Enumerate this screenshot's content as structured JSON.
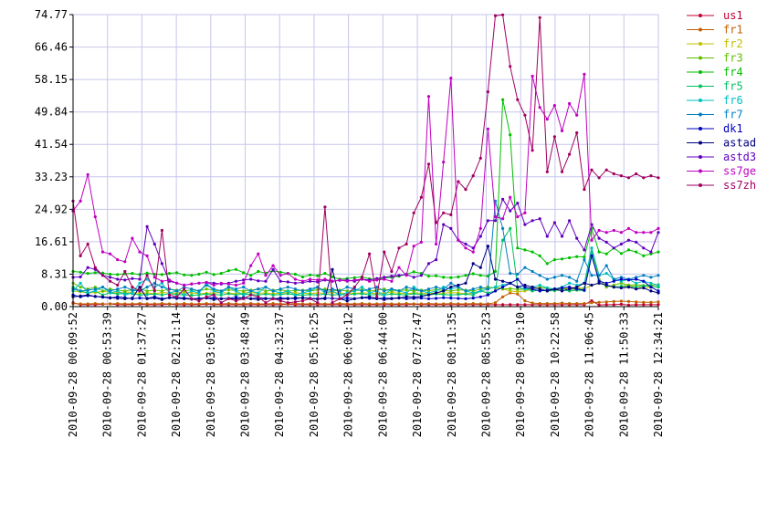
{
  "chart_data": {
    "type": "line",
    "title": "",
    "xlabel": "",
    "ylabel": "",
    "ylim": [
      0,
      74.77
    ],
    "grid": true,
    "legend_position": "right",
    "y_ticks": [
      "0.00",
      "8.31",
      "16.61",
      "24.92",
      "33.23",
      "41.54",
      "49.84",
      "58.15",
      "66.46",
      "74.77"
    ],
    "x_ticks": [
      "2010-09-28 00:09:52",
      "2010-09-28 00:53:39",
      "2010-09-28 01:37:27",
      "2010-09-28 02:21:14",
      "2010-09-28 03:05:02",
      "2010-09-28 03:48:49",
      "2010-09-28 04:32:37",
      "2010-09-28 05:16:25",
      "2010-09-28 06:00:12",
      "2010-09-28 06:44:00",
      "2010-09-28 07:27:47",
      "2010-09-28 08:11:35",
      "2010-09-28 08:55:23",
      "2010-09-28 09:39:10",
      "2010-09-28 10:22:58",
      "2010-09-28 11:06:45",
      "2010-09-28 11:50:33",
      "2010-09-28 12:34:21"
    ],
    "series": [
      {
        "name": "us1",
        "color": "#c00030",
        "values": [
          1.0,
          0.5,
          0.5,
          0.5,
          0.6,
          0.7,
          0.5,
          0.5,
          0.5,
          0.6,
          0.5,
          0.5,
          0.5,
          0.6,
          0.5,
          0.5,
          0.5,
          0.5,
          0.6,
          0.5,
          0.5,
          0.5,
          0.5,
          0.5,
          0.5,
          0.5,
          0.5,
          0.5,
          0.5,
          0.6,
          0.5,
          0.5,
          0.5,
          0.5,
          0.5,
          0.5,
          0.5,
          0.5,
          0.5,
          0.5,
          0.5,
          0.5,
          0.5,
          0.5,
          0.5,
          0.5,
          0.6,
          0.5,
          0.5,
          0.5,
          0.5,
          0.5,
          0.5,
          0.5,
          0.5,
          0.5,
          0.5,
          0.5,
          0.5,
          0.5,
          0.5,
          0.5,
          0.5,
          0.5,
          0.5,
          0.5,
          0.5,
          0.5,
          0.5,
          0.5,
          1.5,
          0.4,
          0.5,
          0.5,
          0.6,
          0.4,
          0.5,
          0.5,
          0.5,
          0.5
        ]
      },
      {
        "name": "fr1",
        "color": "#c06000",
        "values": [
          0.8,
          0.7,
          0.7,
          0.8,
          0.7,
          0.7,
          0.8,
          0.7,
          0.7,
          0.8,
          0.7,
          0.7,
          0.8,
          0.7,
          0.7,
          0.8,
          0.7,
          0.7,
          0.8,
          0.7,
          0.7,
          0.8,
          0.7,
          0.7,
          0.8,
          0.7,
          0.7,
          0.8,
          0.7,
          0.7,
          0.8,
          0.7,
          0.7,
          0.8,
          0.7,
          0.7,
          0.8,
          0.7,
          0.7,
          0.8,
          0.7,
          0.7,
          0.8,
          0.7,
          0.7,
          0.8,
          0.7,
          0.7,
          0.8,
          0.7,
          0.7,
          0.8,
          0.7,
          0.7,
          0.8,
          0.7,
          0.7,
          1.0,
          2.5,
          3.5,
          3.2,
          1.5,
          0.9,
          0.8,
          0.8,
          0.8,
          0.9,
          0.8,
          0.8,
          0.8,
          1.0,
          1.1,
          1.2,
          1.3,
          1.4,
          1.3,
          1.2,
          1.1,
          1.1,
          1.2
        ]
      },
      {
        "name": "fr2",
        "color": "#c0c000",
        "values": [
          4.0,
          3.8,
          3.5,
          3.6,
          3.9,
          3.7,
          3.5,
          3.8,
          3.6,
          3.4,
          3.5,
          3.3,
          3.6,
          3.5,
          3.4,
          3.6,
          3.5,
          3.3,
          3.4,
          3.5,
          3.6,
          3.4,
          3.3,
          3.5,
          3.6,
          3.4,
          3.5,
          3.3,
          3.4,
          3.6,
          3.5,
          3.4,
          3.3,
          3.5,
          3.4,
          3.6,
          3.5,
          3.3,
          3.4,
          3.5,
          3.4,
          3.3,
          3.5,
          3.6,
          3.4,
          3.3,
          3.5,
          3.4,
          3.3,
          3.5,
          3.4,
          3.6,
          3.5,
          3.3,
          3.4,
          4.0,
          4.5,
          5.0,
          4.5,
          4.0,
          3.8,
          4.0,
          4.5,
          5.0,
          4.6,
          4.2,
          4.5,
          4.8,
          5.0,
          4.5,
          5.5,
          6.0,
          5.5,
          5.0,
          5.2,
          5.5,
          5.0,
          4.8,
          5.0,
          5.2
        ]
      },
      {
        "name": "fr3",
        "color": "#60c000",
        "values": [
          6.0,
          5.0,
          4.5,
          5.0,
          4.0,
          4.5,
          4.2,
          4.0,
          4.3,
          4.5,
          4.0,
          4.2,
          4.0,
          4.5,
          4.2,
          4.0,
          4.3,
          4.0,
          4.5,
          4.2,
          4.0,
          4.3,
          4.1,
          4.0,
          4.2,
          4.5,
          4.0,
          4.2,
          4.3,
          4.0,
          4.1,
          4.2,
          4.0,
          4.3,
          4.5,
          4.0,
          4.2,
          4.0,
          4.1,
          4.3,
          4.0,
          4.2,
          4.5,
          4.0,
          4.1,
          4.3,
          4.0,
          4.2,
          4.0,
          4.4,
          4.1,
          4.0,
          4.3,
          4.2,
          4.0,
          4.5,
          5.0,
          4.8,
          4.5,
          4.6,
          4.4,
          4.5,
          4.6,
          4.8,
          4.7,
          4.5,
          4.6,
          4.4,
          4.5,
          4.7,
          15.0,
          7.0,
          5.0,
          5.5,
          6.0,
          5.5,
          5.6,
          5.4,
          5.5,
          5.6
        ]
      },
      {
        "name": "fr4",
        "color": "#00c000",
        "values": [
          9.0,
          8.8,
          8.5,
          8.7,
          8.6,
          8.3,
          8.2,
          8.4,
          8.5,
          8.2,
          8.6,
          8.3,
          8.2,
          8.5,
          8.7,
          8.1,
          8.0,
          8.3,
          8.8,
          8.2,
          8.5,
          9.2,
          9.5,
          8.7,
          8.0,
          9.0,
          8.6,
          9.2,
          8.8,
          8.5,
          8.3,
          7.6,
          8.1,
          7.9,
          8.5,
          7.6,
          7.0,
          7.2,
          7.4,
          7.6,
          7.1,
          7.0,
          7.3,
          7.5,
          7.8,
          8.3,
          8.9,
          8.5,
          7.8,
          7.9,
          7.5,
          7.4,
          7.6,
          8.0,
          8.4,
          8.0,
          7.8,
          9.0,
          53.0,
          44.0,
          15.0,
          14.5,
          14.0,
          13.0,
          11.0,
          12.0,
          12.2,
          12.5,
          12.8,
          12.7,
          20.0,
          14.0,
          13.5,
          15.0,
          13.6,
          14.5,
          14.0,
          13.0,
          13.5,
          14.0
        ]
      },
      {
        "name": "fr5",
        "color": "#00c060",
        "values": [
          5.0,
          4.0,
          3.5,
          4.0,
          3.0,
          3.5,
          3.2,
          3.4,
          3.3,
          3.0,
          3.1,
          3.2,
          3.0,
          3.3,
          3.1,
          3.0,
          2.9,
          3.0,
          3.2,
          3.1,
          3.0,
          3.3,
          3.0,
          3.2,
          3.1,
          3.0,
          3.2,
          3.0,
          3.1,
          3.3,
          3.0,
          2.9,
          3.1,
          3.0,
          3.2,
          3.0,
          3.1,
          3.0,
          3.2,
          3.3,
          3.0,
          3.1,
          3.0,
          3.2,
          3.1,
          3.0,
          3.3,
          3.1,
          3.0,
          3.2,
          3.1,
          3.0,
          3.1,
          3.2,
          3.0,
          4.0,
          3.5,
          4.0,
          17.0,
          20.0,
          5.0,
          4.5,
          4.0,
          4.2,
          4.0,
          4.1,
          4.3,
          4.0,
          4.2,
          4.1,
          14.0,
          6.0,
          5.5,
          5.0,
          5.2,
          5.1,
          5.0,
          5.3,
          5.2,
          5.0
        ]
      },
      {
        "name": "fr6",
        "color": "#00c0c0",
        "values": [
          4.0,
          6.0,
          3.5,
          4.0,
          5.0,
          3.5,
          4.0,
          3.0,
          3.5,
          6.0,
          7.0,
          5.0,
          6.0,
          3.5,
          4.0,
          3.0,
          4.0,
          3.5,
          6.0,
          4.0,
          3.5,
          5.0,
          4.0,
          3.0,
          4.0,
          3.5,
          5.0,
          4.0,
          3.5,
          4.0,
          3.0,
          3.5,
          4.0,
          5.0,
          3.5,
          4.0,
          3.0,
          3.5,
          4.0,
          5.0,
          3.5,
          4.0,
          3.0,
          4.5,
          4.0,
          3.5,
          5.0,
          4.0,
          3.5,
          4.0,
          5.0,
          4.5,
          5.0,
          4.0,
          3.5,
          4.0,
          4.5,
          5.0,
          5.5,
          6.0,
          5.0,
          4.5,
          5.0,
          5.5,
          4.8,
          4.5,
          5.0,
          6.0,
          5.5,
          6.0,
          15.0,
          8.0,
          8.5,
          7.0,
          6.5,
          7.0,
          6.0,
          6.5,
          6.0,
          5.5
        ]
      },
      {
        "name": "fr7",
        "color": "#0080c0",
        "values": [
          4.5,
          4.0,
          4.2,
          4.5,
          5.0,
          4.0,
          4.5,
          5.0,
          4.2,
          4.0,
          5.0,
          6.0,
          5.0,
          4.5,
          4.0,
          5.0,
          4.5,
          4.0,
          5.5,
          4.5,
          4.0,
          5.0,
          4.5,
          5.0,
          4.0,
          4.5,
          5.0,
          4.0,
          4.5,
          5.0,
          4.5,
          4.0,
          4.5,
          5.0,
          4.0,
          4.5,
          4.0,
          5.0,
          4.5,
          4.0,
          4.5,
          5.0,
          4.0,
          4.5,
          4.0,
          5.0,
          4.5,
          4.0,
          4.5,
          5.0,
          4.5,
          6.0,
          5.0,
          4.0,
          4.5,
          5.0,
          4.5,
          27.0,
          20.0,
          8.5,
          8.3,
          10.0,
          9.0,
          8.0,
          7.0,
          7.5,
          8.0,
          7.5,
          6.5,
          12.0,
          8.0,
          8.0,
          10.5,
          7.0,
          7.5,
          7.0,
          7.5,
          8.0,
          7.5,
          8.0
        ]
      },
      {
        "name": "dk1",
        "color": "#0000c0",
        "values": [
          3.0,
          2.5,
          2.8,
          2.6,
          2.4,
          2.2,
          2.5,
          2.3,
          2.0,
          2.2,
          2.1,
          2.5,
          2.0,
          2.3,
          2.4,
          2.2,
          2.0,
          2.1,
          2.3,
          2.2,
          2.0,
          2.1,
          2.4,
          2.2,
          2.0,
          2.3,
          2.1,
          2.0,
          2.2,
          2.1,
          2.0,
          2.3,
          2.1,
          2.0,
          2.2,
          2.1,
          2.0,
          2.2,
          2.0,
          2.3,
          2.1,
          2.0,
          2.2,
          2.1,
          2.3,
          2.0,
          2.1,
          2.2,
          2.0,
          2.1,
          2.3,
          2.2,
          2.1,
          2.0,
          2.2,
          2.5,
          3.0,
          4.0,
          5.0,
          6.0,
          7.0,
          5.0,
          4.5,
          4.0,
          4.2,
          4.5,
          4.8,
          5.0,
          4.5,
          4.2,
          13.0,
          6.5,
          6.0,
          6.5,
          7.0,
          6.8,
          7.0,
          6.5,
          5.0,
          4.0
        ]
      },
      {
        "name": "astad",
        "color": "#000080",
        "values": [
          2.5,
          2.7,
          3.0,
          2.6,
          2.5,
          2.3,
          2.1,
          2.0,
          2.2,
          5.0,
          2.0,
          2.2,
          1.8,
          2.3,
          2.1,
          2.0,
          1.9,
          2.0,
          2.2,
          1.8,
          2.0,
          2.1,
          1.9,
          2.3,
          2.0,
          1.8,
          2.0,
          2.1,
          1.9,
          2.0,
          2.3,
          2.2,
          2.1,
          1.9,
          2.0,
          9.5,
          2.0,
          1.5,
          2.0,
          2.3,
          2.5,
          2.1,
          1.8,
          2.0,
          2.2,
          2.5,
          2.4,
          2.6,
          3.0,
          3.5,
          4.0,
          5.0,
          5.5,
          6.0,
          11.0,
          10.0,
          15.5,
          7.0,
          6.5,
          6.0,
          5.0,
          5.5,
          5.0,
          4.5,
          4.0,
          4.5,
          4.0,
          4.5,
          5.0,
          6.0,
          5.5,
          6.0,
          5.5,
          5.0,
          4.8,
          5.0,
          4.5,
          4.8,
          4.0,
          3.5
        ]
      },
      {
        "name": "astd3",
        "color": "#6000c0",
        "values": [
          7.5,
          7.6,
          10.0,
          9.5,
          8.0,
          7.5,
          7.0,
          6.8,
          7.2,
          7.0,
          20.5,
          16.0,
          11.0,
          6.5,
          6.0,
          5.5,
          5.8,
          6.0,
          6.2,
          6.0,
          5.8,
          6.0,
          6.5,
          6.8,
          7.0,
          6.6,
          6.5,
          9.5,
          6.5,
          6.3,
          6.0,
          6.2,
          6.5,
          6.3,
          6.8,
          6.5,
          6.7,
          6.8,
          6.5,
          7.0,
          6.8,
          7.2,
          7.5,
          7.8,
          8.0,
          8.2,
          7.5,
          8.0,
          11.0,
          12.0,
          21.0,
          20.0,
          17.0,
          16.0,
          15.0,
          18.0,
          22.0,
          22.0,
          27.5,
          24.5,
          26.5,
          21.0,
          22.0,
          22.5,
          18.0,
          21.5,
          18.0,
          22.0,
          17.5,
          14.5,
          21.0,
          17.5,
          16.5,
          15.0,
          16.0,
          17.0,
          16.5,
          15.0,
          14.0,
          19.0
        ]
      },
      {
        "name": "ss7ge",
        "color": "#c000c0",
        "values": [
          24.5,
          27.0,
          33.8,
          23.0,
          14.0,
          13.5,
          12.0,
          11.5,
          17.5,
          14.0,
          13.0,
          7.5,
          6.5,
          6.8,
          6.0,
          5.5,
          5.8,
          6.0,
          6.2,
          5.5,
          6.0,
          5.8,
          5.5,
          6.0,
          10.5,
          13.5,
          8.0,
          10.5,
          8.0,
          8.5,
          7.0,
          6.5,
          7.0,
          6.8,
          7.0,
          6.5,
          6.8,
          6.5,
          6.8,
          7.0,
          6.5,
          6.8,
          7.0,
          6.5,
          10.0,
          8.0,
          15.5,
          16.5,
          53.8,
          16.0,
          37.0,
          58.5,
          17.0,
          15.0,
          14.0,
          20.0,
          45.5,
          23.0,
          22.5,
          28.0,
          23.0,
          24.0,
          59.0,
          51.0,
          48.0,
          51.5,
          45.0,
          52.0,
          49.0,
          59.5,
          17.0,
          19.5,
          19.0,
          19.5,
          19.0,
          20.0,
          19.0,
          19.0,
          19.0,
          20.0
        ]
      },
      {
        "name": "ss7zh",
        "color": "#a00060",
        "values": [
          27.0,
          13.0,
          16.0,
          10.0,
          8.0,
          6.5,
          5.5,
          9.0,
          5.0,
          4.0,
          8.0,
          4.0,
          19.5,
          3.0,
          2.5,
          4.5,
          2.0,
          1.5,
          2.5,
          3.0,
          1.0,
          2.0,
          1.5,
          2.0,
          3.0,
          2.5,
          1.0,
          2.0,
          1.5,
          1.0,
          1.2,
          1.5,
          2.0,
          1.0,
          25.5,
          1.0,
          2.0,
          3.0,
          5.0,
          7.5,
          13.5,
          2.5,
          14.0,
          9.0,
          15.0,
          16.0,
          24.0,
          28.0,
          36.5,
          21.5,
          24.0,
          23.5,
          32.0,
          30.0,
          33.5,
          38.0,
          55.0,
          74.5,
          74.7,
          61.5,
          53.0,
          49.0,
          40.0,
          74.0,
          34.5,
          43.5,
          34.5,
          39.0,
          44.5,
          30.0,
          35.0,
          33.0,
          35.0,
          34.0,
          33.5,
          33.0,
          34.0,
          33.0,
          33.5,
          33.0
        ]
      }
    ]
  }
}
